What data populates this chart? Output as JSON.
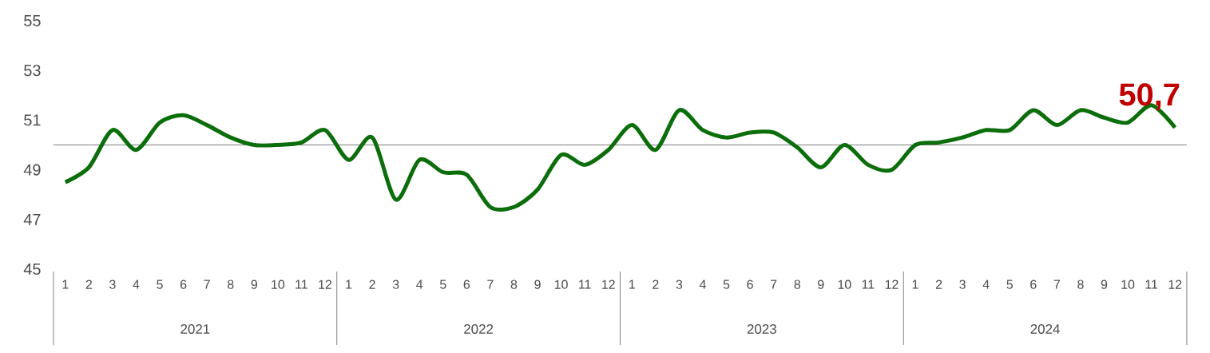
{
  "chart_data": {
    "type": "line",
    "categories": [
      "1",
      "2",
      "3",
      "4",
      "5",
      "6",
      "7",
      "8",
      "9",
      "10",
      "11",
      "12",
      "1",
      "2",
      "3",
      "4",
      "5",
      "6",
      "7",
      "8",
      "9",
      "10",
      "11",
      "12",
      "1",
      "2",
      "3",
      "4",
      "5",
      "6",
      "7",
      "8",
      "9",
      "10",
      "11",
      "12",
      "1",
      "2",
      "3",
      "4",
      "5",
      "6",
      "7",
      "8",
      "9",
      "10",
      "11",
      "12"
    ],
    "series": [
      {
        "color": "#0b6e0b",
        "values": [
          48.5,
          49.1,
          50.6,
          49.8,
          50.9,
          51.2,
          50.8,
          50.3,
          50.0,
          50.0,
          50.1,
          50.6,
          49.4,
          50.3,
          47.8,
          49.4,
          48.9,
          48.8,
          47.5,
          47.5,
          48.2,
          49.6,
          49.2,
          49.8,
          50.8,
          49.8,
          51.4,
          50.6,
          50.3,
          50.5,
          50.5,
          49.9,
          49.1,
          50.0,
          49.2,
          49.0,
          50.0,
          50.1,
          50.3,
          50.6,
          50.6,
          51.4,
          50.8,
          51.4,
          51.1,
          50.9,
          51.6,
          50.7
        ],
        "value_labels": [
          null,
          null,
          null,
          null,
          null,
          null,
          null,
          null,
          null,
          null,
          null,
          null,
          null,
          null,
          null,
          null,
          null,
          null,
          null,
          null,
          null,
          null,
          null,
          null,
          null,
          null,
          null,
          null,
          null,
          null,
          null,
          null,
          null,
          null,
          null,
          null,
          null,
          null,
          null,
          null,
          null,
          null,
          null,
          null,
          null,
          null,
          null,
          "50,7"
        ]
      }
    ],
    "ylim": [
      45,
      55
    ],
    "yticks": [
      45,
      47,
      49,
      51,
      53,
      55
    ],
    "ref_lines": [
      {
        "axis": "y",
        "value": 50,
        "color": "#808080"
      }
    ],
    "annotations": [
      "2021",
      "2022",
      "2023",
      "2024"
    ]
  }
}
